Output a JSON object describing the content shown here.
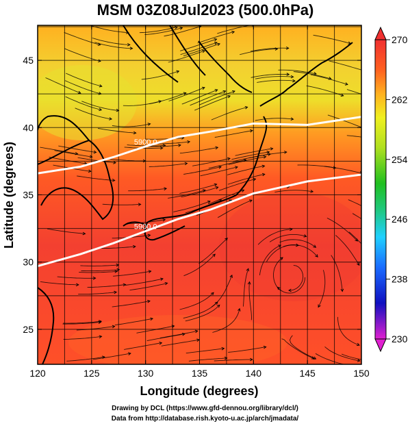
{
  "chart_data": {
    "type": "heatmap",
    "title": "MSM 03Z08Jul2023 (500.0hPa)",
    "xlabel": "Longitude (degrees)",
    "ylabel": "Latitude  (degrees)",
    "xlim": [
      120,
      150
    ],
    "ylim": [
      22.4,
      47.6
    ],
    "xticks": [
      "120",
      "125",
      "130",
      "135",
      "140",
      "145",
      "150"
    ],
    "yticks": [
      "25",
      "30",
      "35",
      "40",
      "45"
    ],
    "colorbar": {
      "range": [
        230,
        270
      ],
      "ticks": [
        "270",
        "262",
        "254",
        "246",
        "238",
        "230"
      ],
      "colors": [
        "#e020d0",
        "#1010c0",
        "#1a6cff",
        "#20d0ff",
        "#20c880",
        "#20c020",
        "#b0e020",
        "#f0f020",
        "#ffb020",
        "#ff6020",
        "#f03030"
      ]
    },
    "contours": [
      {
        "label": "5900.0",
        "points": [
          [
            120,
            36.6
          ],
          [
            124,
            37.1
          ],
          [
            127,
            37.8
          ],
          [
            130,
            38.6
          ],
          [
            133,
            39.3
          ],
          [
            136,
            39.7
          ],
          [
            140,
            40.3
          ],
          [
            145,
            40.2
          ],
          [
            150,
            40.8
          ]
        ]
      },
      {
        "label": "5900.0",
        "points": [
          [
            120,
            29.7
          ],
          [
            124,
            30.6
          ],
          [
            127,
            31.4
          ],
          [
            130,
            32.3
          ],
          [
            133,
            33.2
          ],
          [
            136,
            33.9
          ],
          [
            140,
            35.1
          ],
          [
            145,
            36.0
          ],
          [
            150,
            36.5
          ]
        ]
      }
    ]
  },
  "credits": {
    "line1": "Drawing by DCL (https://www.gfd-dennou.org/library/dcl/)",
    "line2": "Data from http://database.rish.kyoto-u.ac.jp/arch/jmadata/"
  }
}
